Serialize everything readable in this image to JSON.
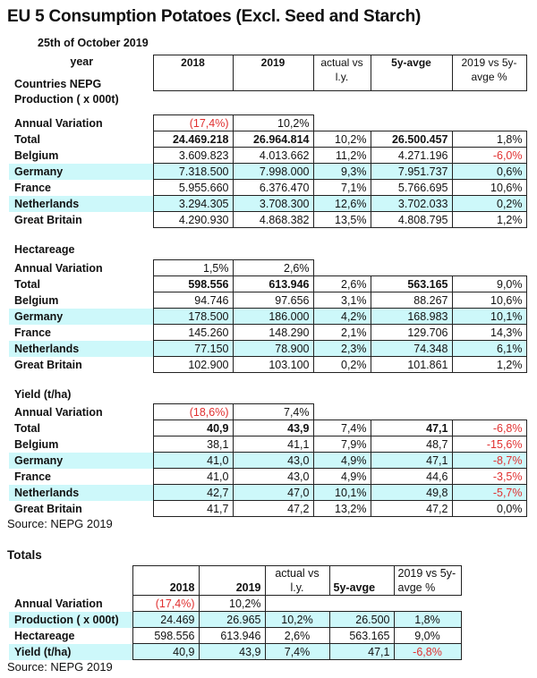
{
  "title": "EU 5 Consumption Potatoes (Excl. Seed and Starch)",
  "date": "25th of October 2019",
  "header": {
    "label": "year",
    "cols": [
      "2018",
      "2019",
      "actual vs l.y.",
      "5y-avge",
      "2019 vs 5y-avge %"
    ]
  },
  "colors": {
    "highlight": "#cdf8fa",
    "negative": "#e03030"
  },
  "sections": [
    {
      "titles": [
        "Countries NEPG",
        "Production ( x 000t)"
      ],
      "annual_variation": {
        "label": "Annual Variation",
        "values": [
          "(17,4%)",
          "10,2%"
        ]
      },
      "rows": [
        {
          "label": "Total",
          "values": [
            "24.469.218",
            "26.964.814",
            "10,2%",
            "26.500.457",
            "1,8%"
          ]
        },
        {
          "label": "Belgium",
          "values": [
            "3.609.823",
            "4.013.662",
            "11,2%",
            "4.271.196",
            "-6,0%"
          ]
        },
        {
          "label": "Germany",
          "values": [
            "7.318.500",
            "7.998.000",
            "9,3%",
            "7.951.737",
            "0,6%"
          ]
        },
        {
          "label": "France",
          "values": [
            "5.955.660",
            "6.376.470",
            "7,1%",
            "5.766.695",
            "10,6%"
          ]
        },
        {
          "label": "Netherlands",
          "values": [
            "3.294.305",
            "3.708.300",
            "12,6%",
            "3.702.033",
            "0,2%"
          ]
        },
        {
          "label": "Great Britain",
          "values": [
            "4.290.930",
            "4.868.382",
            "13,5%",
            "4.808.795",
            "1,2%"
          ]
        }
      ]
    },
    {
      "titles": [
        "Hectareage"
      ],
      "annual_variation": {
        "label": "Annual Variation",
        "values": [
          "1,5%",
          "2,6%"
        ]
      },
      "rows": [
        {
          "label": "Total",
          "values": [
            "598.556",
            "613.946",
            "2,6%",
            "563.165",
            "9,0%"
          ]
        },
        {
          "label": "Belgium",
          "values": [
            "94.746",
            "97.656",
            "3,1%",
            "88.267",
            "10,6%"
          ]
        },
        {
          "label": "Germany",
          "values": [
            "178.500",
            "186.000",
            "4,2%",
            "168.983",
            "10,1%"
          ]
        },
        {
          "label": "France",
          "values": [
            "145.260",
            "148.290",
            "2,1%",
            "129.706",
            "14,3%"
          ]
        },
        {
          "label": "Netherlands",
          "values": [
            "77.150",
            "78.900",
            "2,3%",
            "74.348",
            "6,1%"
          ]
        },
        {
          "label": "Great Britain",
          "values": [
            "102.900",
            "103.100",
            "0,2%",
            "101.861",
            "1,2%"
          ]
        }
      ]
    },
    {
      "titles": [
        "Yield (t/ha)"
      ],
      "annual_variation": {
        "label": "Annual Variation",
        "values": [
          "(18,6%)",
          "7,4%"
        ]
      },
      "rows": [
        {
          "label": "Total",
          "values": [
            "40,9",
            "43,9",
            "7,4%",
            "47,1",
            "-6,8%"
          ]
        },
        {
          "label": "Belgium",
          "values": [
            "38,1",
            "41,1",
            "7,9%",
            "48,7",
            "-15,6%"
          ]
        },
        {
          "label": "Germany",
          "values": [
            "41,0",
            "43,0",
            "4,9%",
            "47,1",
            "-8,7%"
          ]
        },
        {
          "label": "France",
          "values": [
            "41,0",
            "43,0",
            "4,9%",
            "44,6",
            "-3,5%"
          ]
        },
        {
          "label": "Netherlands",
          "values": [
            "42,7",
            "47,0",
            "10,1%",
            "49,8",
            "-5,7%"
          ]
        },
        {
          "label": "Great Britain",
          "values": [
            "41,7",
            "47,2",
            "13,2%",
            "47,2",
            "0,0%"
          ]
        }
      ]
    }
  ],
  "source": "Source: NEPG 2019",
  "totals": {
    "title": "Totals",
    "header": [
      "2018",
      "2019",
      "actual vs l.y.",
      "5y-avge",
      "2019 vs 5y-avge %"
    ],
    "annual_variation": {
      "label": "Annual Variation",
      "values": [
        "(17,4%)",
        "10,2%"
      ]
    },
    "rows": [
      {
        "label": "Production ( x 000t)",
        "values": [
          "24.469",
          "26.965",
          "10,2%",
          "26.500",
          "1,8%"
        ]
      },
      {
        "label": "Hectareage",
        "values": [
          "598.556",
          "613.946",
          "2,6%",
          "563.165",
          "9,0%"
        ]
      },
      {
        "label": "Yield (t/ha)",
        "values": [
          "40,9",
          "43,9",
          "7,4%",
          "47,1",
          "-6,8%"
        ]
      }
    ]
  }
}
